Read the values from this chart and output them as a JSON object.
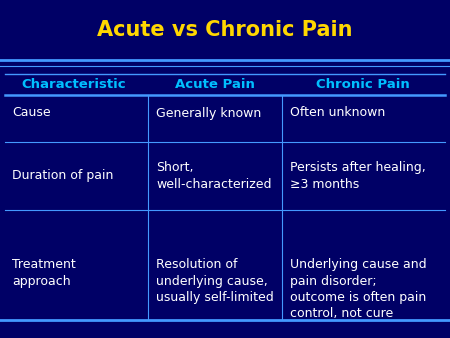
{
  "title": "Acute vs Chronic Pain",
  "title_color": "#FFD700",
  "title_fontsize": 15,
  "background_color": "#000066",
  "header_text_color": "#00BFFF",
  "body_text_color": "#FFFFFF",
  "line_color": "#4499FF",
  "col_headers": [
    "Characteristic",
    "Acute Pain",
    "Chronic Pain"
  ],
  "rows": [
    {
      "col0": "Cause",
      "col1": "Generally known",
      "col2": "Often unknown"
    },
    {
      "col0": "Duration of pain",
      "col1": "Short,\nwell-characterized",
      "col2": "Persists after healing,\n≥3 months"
    },
    {
      "col0": "Treatment\napproach",
      "col1": "Resolution of\nunderlying cause,\nusually self-limited",
      "col2": "Underlying cause and\npain disorder;\noutcome is often pain\ncontrol, not cure"
    }
  ],
  "font_size": 9.0,
  "header_font_size": 9.5
}
